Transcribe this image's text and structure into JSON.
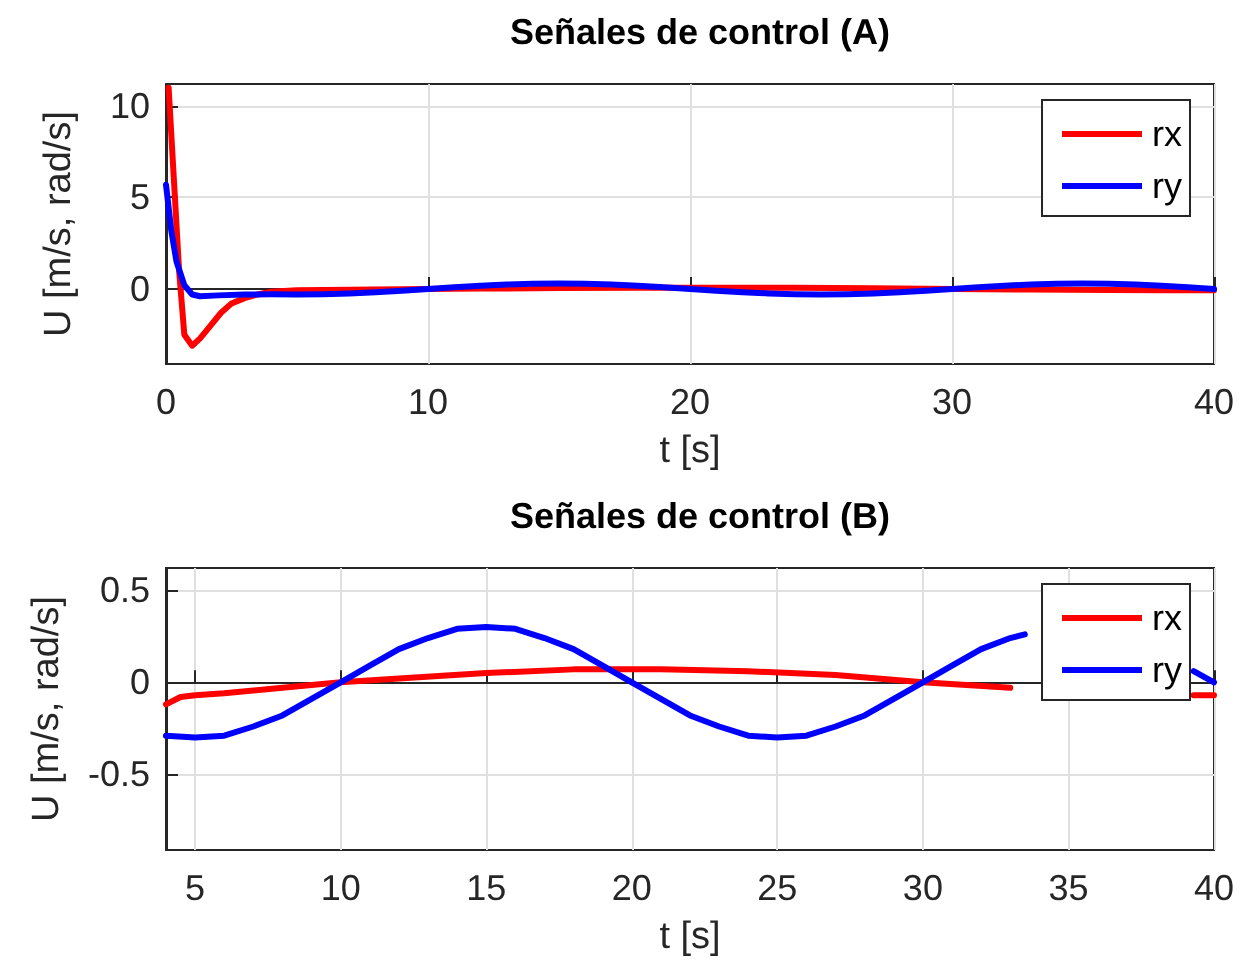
{
  "chart_data": [
    {
      "type": "line",
      "title": "Señales de control (A)",
      "xlabel": "t [s]",
      "ylabel": "U [m/s, rad/s]",
      "xlim": [
        0,
        40
      ],
      "ylim": [
        -4.1,
        11.2
      ],
      "xticks": [
        0,
        10,
        20,
        30,
        40
      ],
      "yticks": [
        0,
        5,
        10
      ],
      "grid": true,
      "legend": "top right",
      "line_style": "solid",
      "series": [
        {
          "name": "rx",
          "color": "#ff0000",
          "x": [
            0.1,
            0.3,
            0.5,
            0.7,
            1,
            1.3,
            1.7,
            2.1,
            2.5,
            3,
            3.5,
            4,
            5,
            6,
            8,
            10,
            12,
            15,
            18,
            21,
            24,
            27,
            30,
            33,
            36,
            38,
            40
          ],
          "values": [
            11,
            6,
            1,
            -2.5,
            -3.1,
            -2.7,
            -2,
            -1.3,
            -0.8,
            -0.5,
            -0.3,
            -0.15,
            -0.07,
            -0.055,
            -0.03,
            0,
            0.02,
            0.05,
            0.065,
            0.07,
            0.06,
            0.04,
            0,
            -0.03,
            -0.06,
            -0.07,
            -0.07
          ]
        },
        {
          "name": "ry",
          "color": "#0000ff",
          "x": [
            0,
            0.2,
            0.4,
            0.7,
            1,
            1.3,
            2,
            3,
            4,
            5,
            6,
            7,
            8,
            9,
            10,
            11,
            12,
            13,
            14,
            15,
            16,
            17,
            18,
            19,
            20,
            21,
            22,
            23,
            24,
            25,
            26,
            27,
            28,
            29,
            30,
            31,
            32,
            33,
            34,
            35,
            36,
            37,
            38,
            39,
            40
          ],
          "values": [
            5.7,
            3.2,
            1.5,
            0.2,
            -0.3,
            -0.4,
            -0.35,
            -0.3,
            -0.29,
            -0.3,
            -0.285,
            -0.243,
            -0.176,
            -0.093,
            0,
            0.093,
            0.176,
            0.243,
            0.285,
            0.3,
            0.285,
            0.243,
            0.176,
            0.093,
            0,
            -0.093,
            -0.176,
            -0.243,
            -0.285,
            -0.3,
            -0.285,
            -0.243,
            -0.176,
            -0.093,
            0,
            0.093,
            0.176,
            0.243,
            0.285,
            0.3,
            0.285,
            0.243,
            0.176,
            0.093,
            0
          ]
        }
      ]
    },
    {
      "type": "line",
      "title": "Señales de control (B)",
      "xlabel": "t [s]",
      "ylabel": "U [m/s, rad/s]",
      "xlim": [
        4,
        40
      ],
      "ylim": [
        -0.91,
        0.62
      ],
      "xticks": [
        5,
        10,
        15,
        20,
        25,
        30,
        35,
        40
      ],
      "yticks": [
        -0.5,
        0,
        0.5
      ],
      "grid": true,
      "legend": "top right",
      "line_style": "solid",
      "series": [
        {
          "name": "rx",
          "color": "#ff0000",
          "x": [
            4,
            4.5,
            5,
            6,
            8,
            10,
            12,
            15,
            18,
            21,
            24,
            27,
            30,
            33,
            36,
            38,
            39.3,
            40
          ],
          "values": [
            -0.12,
            -0.08,
            -0.07,
            -0.06,
            -0.03,
            0,
            0.02,
            0.05,
            0.07,
            0.07,
            0.06,
            0.04,
            0,
            -0.03,
            null,
            null,
            -0.07,
            -0.07
          ]
        },
        {
          "name": "ry",
          "color": "#0000ff",
          "x": [
            4,
            5,
            6,
            7,
            8,
            9,
            10,
            11,
            12,
            13,
            14,
            15,
            16,
            17,
            18,
            19,
            20,
            21,
            22,
            23,
            24,
            25,
            26,
            27,
            28,
            29,
            30,
            31,
            32,
            33,
            33.5,
            34,
            35,
            36,
            37,
            38,
            39.3,
            40
          ],
          "values": [
            -0.29,
            -0.3,
            -0.29,
            -0.24,
            -0.18,
            -0.09,
            0,
            0.09,
            0.18,
            0.24,
            0.29,
            0.3,
            0.29,
            0.24,
            0.18,
            0.09,
            0,
            -0.09,
            -0.18,
            -0.24,
            -0.29,
            -0.3,
            -0.29,
            -0.24,
            -0.18,
            -0.09,
            0,
            0.09,
            0.18,
            0.24,
            0.26,
            null,
            null,
            null,
            null,
            null,
            0.06,
            0
          ]
        }
      ]
    }
  ]
}
